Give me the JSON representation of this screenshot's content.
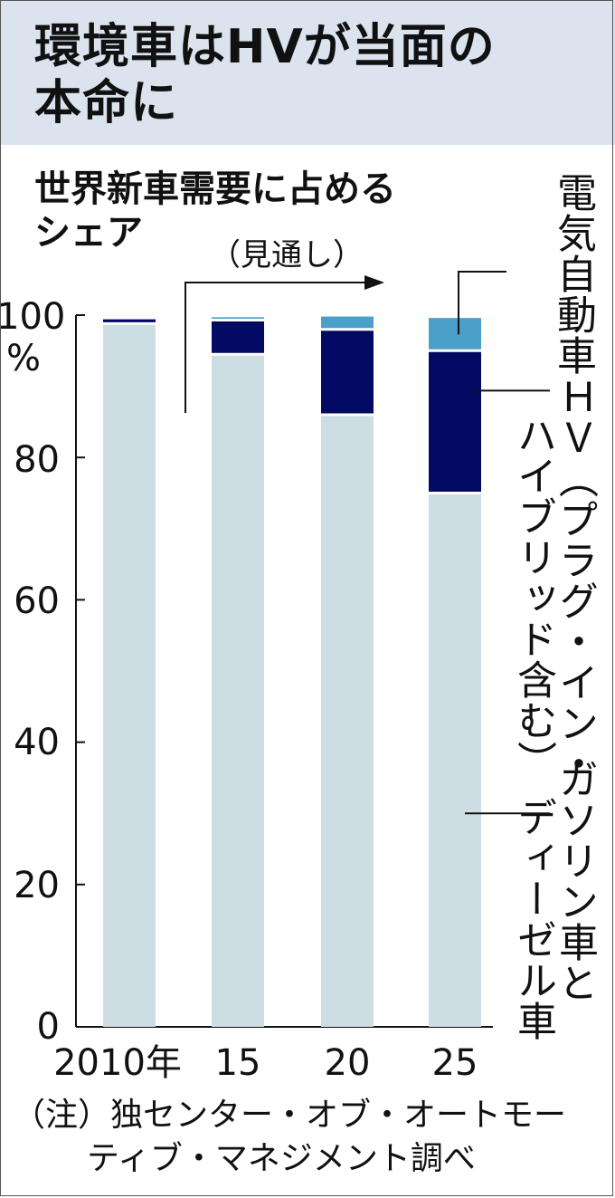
{
  "header": {
    "title_line1": "環境車はHVが当面の",
    "title_line2": "本命に"
  },
  "chart_data": {
    "type": "bar",
    "stacked": true,
    "subtitle_line1": "世界新車需要に占める",
    "subtitle_line2": "シェア",
    "forecast_label": "（見通し）",
    "y_unit": "%",
    "ylim": [
      0,
      100
    ],
    "y_ticks": [
      "0",
      "20",
      "40",
      "60",
      "80",
      "100"
    ],
    "categories": [
      "2010年",
      "15",
      "20",
      "25"
    ],
    "series": [
      {
        "name": "ガソリン車とディーゼル車",
        "values": [
          98.8,
          94.5,
          86,
          75
        ],
        "color": "#ccdde4"
      },
      {
        "name": "HV（プラグ・イン・ハイブリッド含む）",
        "values": [
          0.8,
          4.8,
          12,
          20
        ],
        "color": "#030a64"
      },
      {
        "name": "電気自動車",
        "values": [
          0.1,
          0.4,
          1.8,
          4.6
        ],
        "color": "#4aa0c8"
      }
    ],
    "legend_labels": {
      "ev": "電気自動車",
      "hv_line1": "ＨＶ（プラグ・イン・",
      "hv_line2": "ハイブリッド含む）",
      "gas_line1": "ガソリン車と",
      "gas_line2": "ディーゼル車"
    },
    "note_line1": "（注）独センター・オブ・オートモー",
    "note_line2": "ティブ・マネジメント調べ"
  }
}
